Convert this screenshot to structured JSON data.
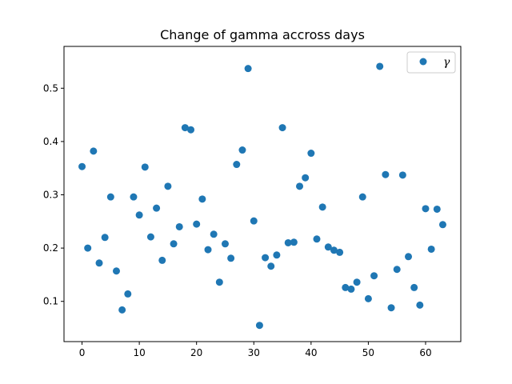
{
  "chart_data": {
    "type": "scatter",
    "title": "Change of gamma accross days",
    "xlabel": "",
    "ylabel": "",
    "xlim": [
      -3.15,
      66.15
    ],
    "ylim": [
      0.0245,
      0.5785
    ],
    "xticks": [
      0,
      10,
      20,
      30,
      40,
      50,
      60
    ],
    "yticks": [
      0.1,
      0.2,
      0.3,
      0.4,
      0.5
    ],
    "grid": false,
    "legend_position": "top-right",
    "marker_color": "#1f77b4",
    "series": [
      {
        "name": "γ",
        "x": [
          0,
          1,
          2,
          3,
          4,
          5,
          6,
          7,
          8,
          9,
          10,
          11,
          12,
          13,
          14,
          15,
          16,
          17,
          18,
          19,
          20,
          21,
          22,
          23,
          24,
          25,
          26,
          27,
          28,
          29,
          30,
          31,
          32,
          33,
          34,
          35,
          36,
          37,
          38,
          39,
          40,
          41,
          42,
          43,
          44,
          45,
          46,
          47,
          48,
          49,
          50,
          51,
          52,
          53,
          54,
          55,
          56,
          57,
          58,
          59,
          60,
          61,
          62,
          63
        ],
        "y": [
          0.353,
          0.2,
          0.382,
          0.172,
          0.22,
          0.296,
          0.157,
          0.084,
          0.114,
          0.296,
          0.262,
          0.352,
          0.221,
          0.275,
          0.177,
          0.316,
          0.208,
          0.24,
          0.426,
          0.422,
          0.245,
          0.292,
          0.197,
          0.226,
          0.136,
          0.208,
          0.181,
          0.357,
          0.384,
          0.537,
          0.251,
          0.055,
          0.182,
          0.166,
          0.187,
          0.426,
          0.21,
          0.211,
          0.316,
          0.332,
          0.378,
          0.217,
          0.277,
          0.202,
          0.196,
          0.192,
          0.126,
          0.123,
          0.136,
          0.296,
          0.105,
          0.148,
          0.541,
          0.338,
          0.088,
          0.16,
          0.337,
          0.184,
          0.126,
          0.093,
          0.274,
          0.198,
          0.273,
          0.244
        ]
      }
    ]
  }
}
